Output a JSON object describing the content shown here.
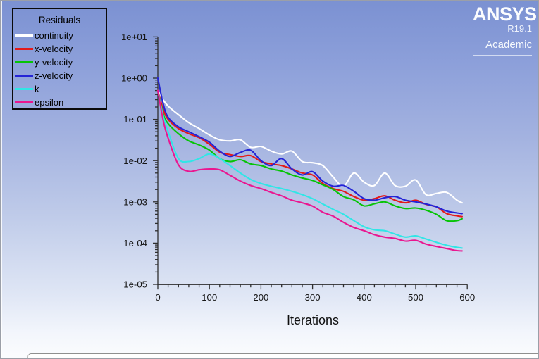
{
  "app": {
    "brand": "ANSYS",
    "version": "R19.1",
    "license": "Academic"
  },
  "legend": {
    "title": "Residuals",
    "entries": [
      {
        "label": "continuity"
      },
      {
        "label": "x-velocity"
      },
      {
        "label": "y-velocity"
      },
      {
        "label": "z-velocity"
      },
      {
        "label": "k"
      },
      {
        "label": "epsilon"
      }
    ]
  },
  "chart_data": {
    "type": "line",
    "title": "",
    "xlabel": "Iterations",
    "ylabel": "",
    "legend_position": "top-left",
    "grid": false,
    "x_axis": {
      "min": 0,
      "max": 600,
      "major_ticks": [
        0,
        100,
        200,
        300,
        400,
        500,
        600
      ],
      "minor_step": 20
    },
    "y_axis": {
      "scale": "log10",
      "min": 1e-05,
      "max": 10,
      "ticks": [
        {
          "label": "1e+01",
          "exp": 1
        },
        {
          "label": "1e+00",
          "exp": 0
        },
        {
          "label": "1e-01",
          "exp": -1
        },
        {
          "label": "1e-02",
          "exp": -2
        },
        {
          "label": "1e-03",
          "exp": -3
        },
        {
          "label": "1e-04",
          "exp": -4
        },
        {
          "label": "1e-05",
          "exp": -5
        }
      ]
    },
    "iterations": [
      0,
      10,
      20,
      40,
      60,
      80,
      100,
      120,
      140,
      160,
      180,
      200,
      220,
      240,
      260,
      280,
      300,
      320,
      340,
      360,
      380,
      400,
      420,
      440,
      460,
      480,
      500,
      520,
      540,
      560,
      580,
      590
    ],
    "series": [
      {
        "name": "continuity",
        "color": "#ffffff",
        "values": [
          0.5,
          0.3,
          0.21,
          0.13,
          0.083,
          0.06,
          0.042,
          0.032,
          0.03,
          0.032,
          0.021,
          0.022,
          0.017,
          0.0145,
          0.017,
          0.0095,
          0.0089,
          0.0076,
          0.004,
          0.0024,
          0.005,
          0.003,
          0.0025,
          0.005,
          0.0025,
          0.0024,
          0.0034,
          0.0015,
          0.0016,
          0.0017,
          0.0011,
          0.00095
        ]
      },
      {
        "name": "x-velocity",
        "color": "#e31a1a",
        "values": [
          0.5,
          0.18,
          0.1,
          0.06,
          0.045,
          0.036,
          0.025,
          0.016,
          0.014,
          0.0126,
          0.0132,
          0.0095,
          0.0083,
          0.0076,
          0.0063,
          0.005,
          0.0045,
          0.0028,
          0.0021,
          0.0018,
          0.00135,
          0.0011,
          0.0012,
          0.0014,
          0.0011,
          0.00095,
          0.0011,
          0.00087,
          0.00076,
          0.00052,
          0.00046,
          0.00044
        ]
      },
      {
        "name": "y-velocity",
        "color": "#06c406",
        "values": [
          0.5,
          0.14,
          0.079,
          0.045,
          0.03,
          0.024,
          0.018,
          0.0112,
          0.0095,
          0.0105,
          0.0083,
          0.0076,
          0.0063,
          0.0056,
          0.0045,
          0.0038,
          0.0033,
          0.0026,
          0.002,
          0.00135,
          0.00112,
          0.0008,
          0.0009,
          0.001,
          0.0008,
          0.00069,
          0.00071,
          0.00063,
          0.0005,
          0.00035,
          0.00035,
          0.00039
        ]
      },
      {
        "name": "z-velocity",
        "color": "#2424d6",
        "values": [
          1.0,
          0.25,
          0.112,
          0.066,
          0.05,
          0.038,
          0.028,
          0.017,
          0.0126,
          0.0158,
          0.0178,
          0.01,
          0.0076,
          0.0112,
          0.0063,
          0.0045,
          0.0054,
          0.0032,
          0.0024,
          0.0025,
          0.0018,
          0.0012,
          0.0011,
          0.00126,
          0.00135,
          0.0011,
          0.001,
          0.00089,
          0.00076,
          0.0006,
          0.00054,
          0.00052
        ]
      },
      {
        "name": "k",
        "color": "#30e6e6",
        "values": [
          0.5,
          0.126,
          0.05,
          0.0112,
          0.0095,
          0.0112,
          0.0145,
          0.0112,
          0.0076,
          0.005,
          0.0035,
          0.0028,
          0.0024,
          0.0021,
          0.0018,
          0.0015,
          0.0012,
          0.00089,
          0.00066,
          0.0005,
          0.00035,
          0.00025,
          0.00021,
          0.0002,
          0.000166,
          0.00014,
          0.00015,
          0.000126,
          0.000105,
          8.9e-05,
          7.9e-05,
          7.6e-05
        ]
      },
      {
        "name": "epsilon",
        "color": "#ea1690",
        "values": [
          0.5,
          0.1,
          0.035,
          0.0079,
          0.0055,
          0.006,
          0.0063,
          0.006,
          0.0044,
          0.0032,
          0.0025,
          0.0021,
          0.0017,
          0.0014,
          0.0011,
          0.00095,
          0.00079,
          0.00056,
          0.00045,
          0.00032,
          0.00024,
          0.0002,
          0.00016,
          0.00014,
          0.00013,
          0.000112,
          0.000117,
          9.5e-05,
          8.3e-05,
          7.4e-05,
          6.6e-05,
          6.5e-05
        ]
      }
    ]
  }
}
